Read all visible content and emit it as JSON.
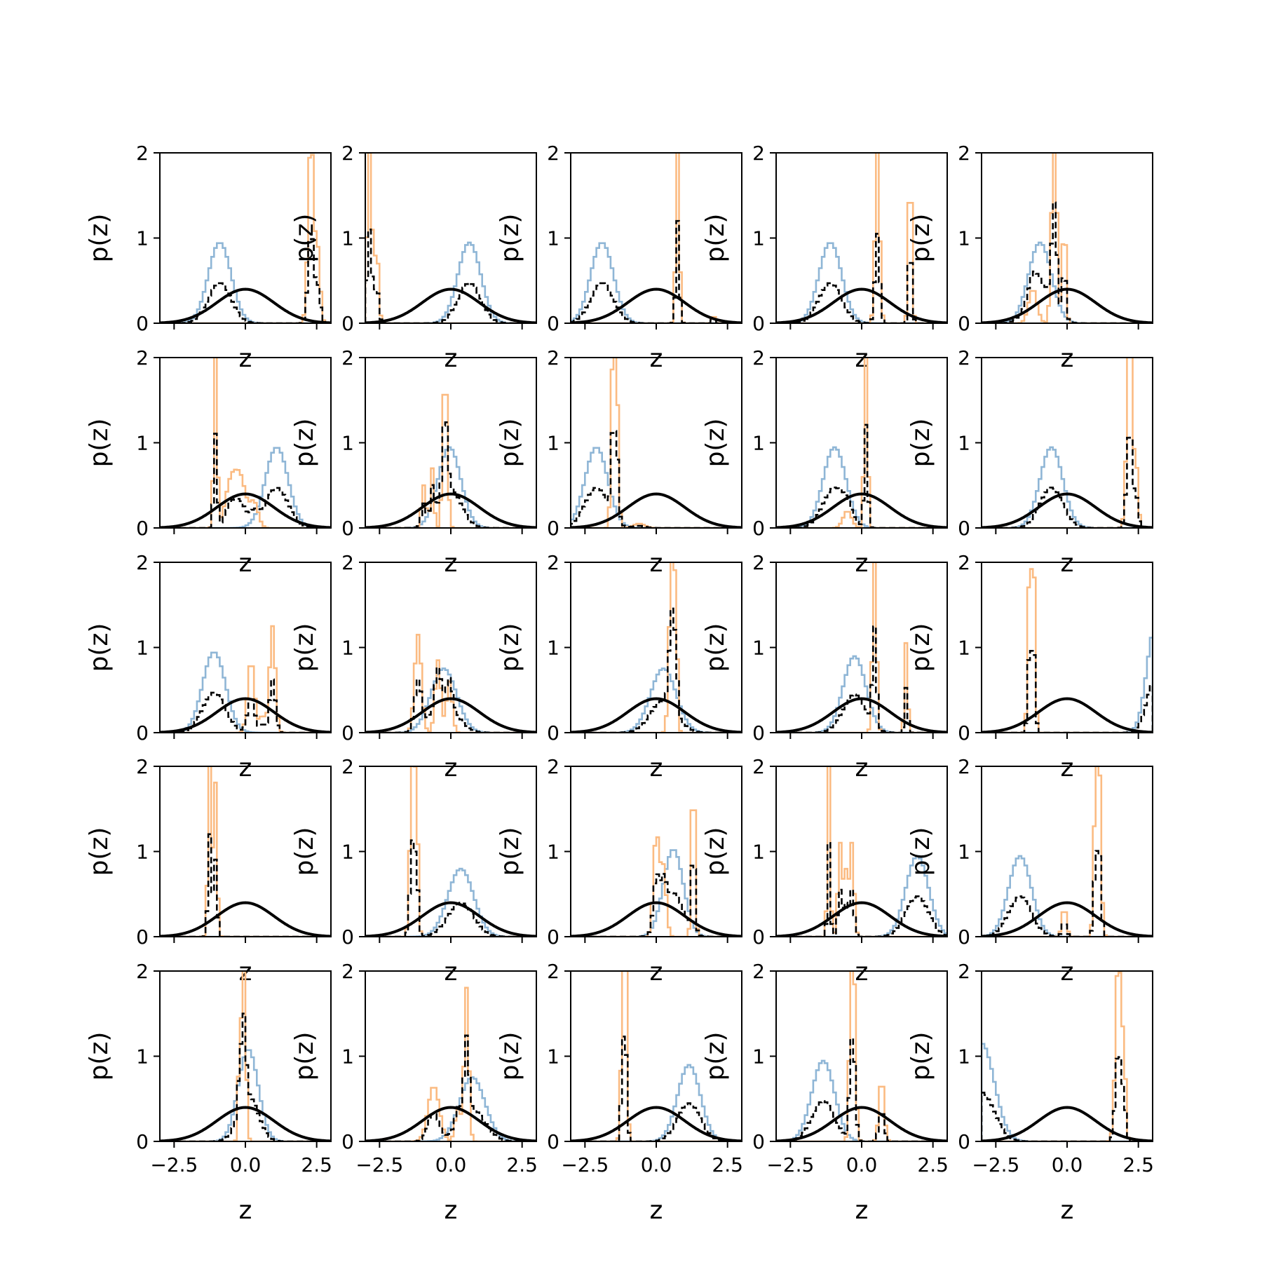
{
  "figure": {
    "rows": 5,
    "cols": 5
  },
  "colors": {
    "hist_blue": "#8fb6d6",
    "hist_orange": "#fbbb82",
    "mix": "#000000",
    "prior": "#000000",
    "axes": "#000000"
  },
  "chart_data": {
    "type": "line",
    "title": "",
    "xlabel": "z",
    "ylabel": "p(z)",
    "xlim": [
      -3,
      3
    ],
    "ylim": [
      0,
      2
    ],
    "xticks": [
      -2.5,
      0.0,
      2.5
    ],
    "xtick_labels": [
      "−2.5",
      "0.0",
      "2.5"
    ],
    "yticks": [
      0,
      1,
      2
    ],
    "ytick_labels": [
      "0",
      "1",
      "2"
    ],
    "prior": {
      "mean": 0,
      "std": 1
    },
    "series_encoding": "each subplot: blue = gaussian (mean, std, weight); orange = list of peaks [center, height, width]; dashed black = half-weighted mixture of both; solid black = standard normal prior",
    "panels": [
      {
        "blue": [
          [
            -0.9,
            0.4,
            0.95
          ]
        ],
        "orange": [
          [
            2.3,
            2.2,
            0.1
          ],
          [
            2.55,
            0.8,
            0.08
          ]
        ]
      },
      {
        "blue": [
          [
            0.65,
            0.4,
            0.95
          ]
        ],
        "orange": [
          [
            -2.85,
            2.2,
            0.08
          ],
          [
            -2.6,
            0.9,
            0.07
          ]
        ]
      },
      {
        "blue": [
          [
            -1.9,
            0.4,
            0.95
          ]
        ],
        "orange": [
          [
            0.75,
            2.4,
            0.06
          ],
          [
            2.0,
            0.12,
            0.05
          ]
        ]
      },
      {
        "blue": [
          [
            -1.1,
            0.4,
            0.95
          ]
        ],
        "orange": [
          [
            0.55,
            2.1,
            0.08
          ],
          [
            1.7,
            2.0,
            0.06
          ]
        ]
      },
      {
        "blue": [
          [
            -0.95,
            0.4,
            0.95
          ]
        ],
        "orange": [
          [
            -0.45,
            2.4,
            0.09
          ],
          [
            -0.1,
            1.3,
            0.06
          ],
          [
            -1.2,
            0.4,
            0.15
          ]
        ]
      },
      {
        "blue": [
          [
            1.1,
            0.4,
            0.95
          ]
        ],
        "orange": [
          [
            -1.05,
            2.2,
            0.06
          ],
          [
            -0.5,
            0.55,
            0.2
          ],
          [
            -0.15,
            0.5,
            0.18
          ],
          [
            0.3,
            0.3,
            0.15
          ]
        ]
      },
      {
        "blue": [
          [
            -0.05,
            0.4,
            0.95
          ]
        ],
        "orange": [
          [
            -0.2,
            1.9,
            0.08
          ],
          [
            -0.65,
            0.7,
            0.06
          ],
          [
            -0.95,
            0.5,
            0.08
          ]
        ]
      },
      {
        "blue": [
          [
            -2.1,
            0.4,
            0.95
          ]
        ],
        "orange": [
          [
            -1.5,
            2.4,
            0.07
          ],
          [
            -1.35,
            1.2,
            0.05
          ],
          [
            -0.6,
            0.05,
            0.2
          ]
        ]
      },
      {
        "blue": [
          [
            -0.95,
            0.4,
            0.95
          ]
        ],
        "orange": [
          [
            0.15,
            2.4,
            0.06
          ],
          [
            -0.5,
            0.2,
            0.15
          ]
        ]
      },
      {
        "blue": [
          [
            -0.55,
            0.4,
            0.95
          ]
        ],
        "orange": [
          [
            2.2,
            2.4,
            0.1
          ],
          [
            2.45,
            0.6,
            0.06
          ]
        ]
      },
      {
        "blue": [
          [
            -1.1,
            0.4,
            0.95
          ]
        ],
        "orange": [
          [
            0.2,
            0.85,
            0.12
          ],
          [
            0.95,
            1.25,
            0.1
          ],
          [
            0.6,
            0.2,
            0.1
          ]
        ]
      },
      {
        "blue": [
          [
            -0.25,
            0.45,
            0.85
          ]
        ],
        "orange": [
          [
            -1.15,
            1.15,
            0.12
          ],
          [
            -0.45,
            0.85,
            0.1
          ],
          [
            -0.05,
            0.6,
            0.1
          ]
        ]
      },
      {
        "blue": [
          [
            0.25,
            0.45,
            0.85
          ]
        ],
        "orange": [
          [
            0.55,
            2.3,
            0.09
          ],
          [
            0.7,
            1.1,
            0.05
          ]
        ]
      },
      {
        "blue": [
          [
            -0.25,
            0.4,
            0.9
          ]
        ],
        "orange": [
          [
            0.45,
            2.3,
            0.07
          ],
          [
            1.55,
            0.9,
            0.05
          ],
          [
            1.6,
            0.25,
            0.05
          ]
        ]
      },
      {
        "blue": [
          [
            3.1,
            0.3,
            0.95
          ]
        ],
        "orange": [
          [
            -1.3,
            2.2,
            0.07
          ],
          [
            -1.15,
            1.6,
            0.05
          ]
        ]
      },
      {
        "blue": [],
        "orange": [
          [
            -1.25,
            2.4,
            0.06
          ],
          [
            -1.05,
            1.8,
            0.06
          ]
        ]
      },
      {
        "blue": [
          [
            0.35,
            0.45,
            0.9
          ]
        ],
        "orange": [
          [
            -1.35,
            2.2,
            0.08
          ],
          [
            -1.2,
            1.4,
            0.06
          ]
        ]
      },
      {
        "blue": [
          [
            0.6,
            0.35,
            0.9
          ]
        ],
        "orange": [
          [
            0.0,
            1.2,
            0.1
          ],
          [
            1.3,
            2.1,
            0.06
          ],
          [
            0.25,
            0.8,
            0.1
          ]
        ]
      },
      {
        "blue": [
          [
            1.95,
            0.4,
            0.95
          ]
        ],
        "orange": [
          [
            -1.15,
            2.2,
            0.05
          ],
          [
            -0.75,
            1.1,
            0.08
          ],
          [
            -0.35,
            1.1,
            0.08
          ],
          [
            -0.55,
            0.7,
            0.06
          ]
        ]
      },
      {
        "blue": [
          [
            -1.65,
            0.4,
            0.95
          ]
        ],
        "orange": [
          [
            1.1,
            2.3,
            0.08
          ],
          [
            0.95,
            0.9,
            0.05
          ],
          [
            -0.1,
            0.35,
            0.08
          ]
        ]
      },
      {
        "blue": [
          [
            0.1,
            0.35,
            0.95
          ]
        ],
        "orange": [
          [
            -0.05,
            2.0,
            0.07
          ],
          [
            -0.2,
            1.2,
            0.05
          ]
        ]
      },
      {
        "blue": [
          [
            0.75,
            0.45,
            0.85
          ]
        ],
        "orange": [
          [
            0.55,
            1.8,
            0.08
          ],
          [
            -0.6,
            0.65,
            0.2
          ],
          [
            0.25,
            0.4,
            0.1
          ]
        ]
      },
      {
        "blue": [
          [
            1.15,
            0.4,
            0.9
          ]
        ],
        "orange": [
          [
            -1.15,
            2.3,
            0.07
          ],
          [
            -1.05,
            1.2,
            0.05
          ]
        ]
      },
      {
        "blue": [
          [
            -1.35,
            0.4,
            0.95
          ]
        ],
        "orange": [
          [
            -0.3,
            2.2,
            0.08
          ],
          [
            0.7,
            0.75,
            0.09
          ],
          [
            -0.4,
            0.8,
            0.06
          ]
        ]
      },
      {
        "blue": [
          [
            -3.0,
            0.45,
            1.3
          ]
        ],
        "orange": [
          [
            1.8,
            2.2,
            0.1
          ],
          [
            2.0,
            0.9,
            0.06
          ]
        ]
      }
    ]
  }
}
